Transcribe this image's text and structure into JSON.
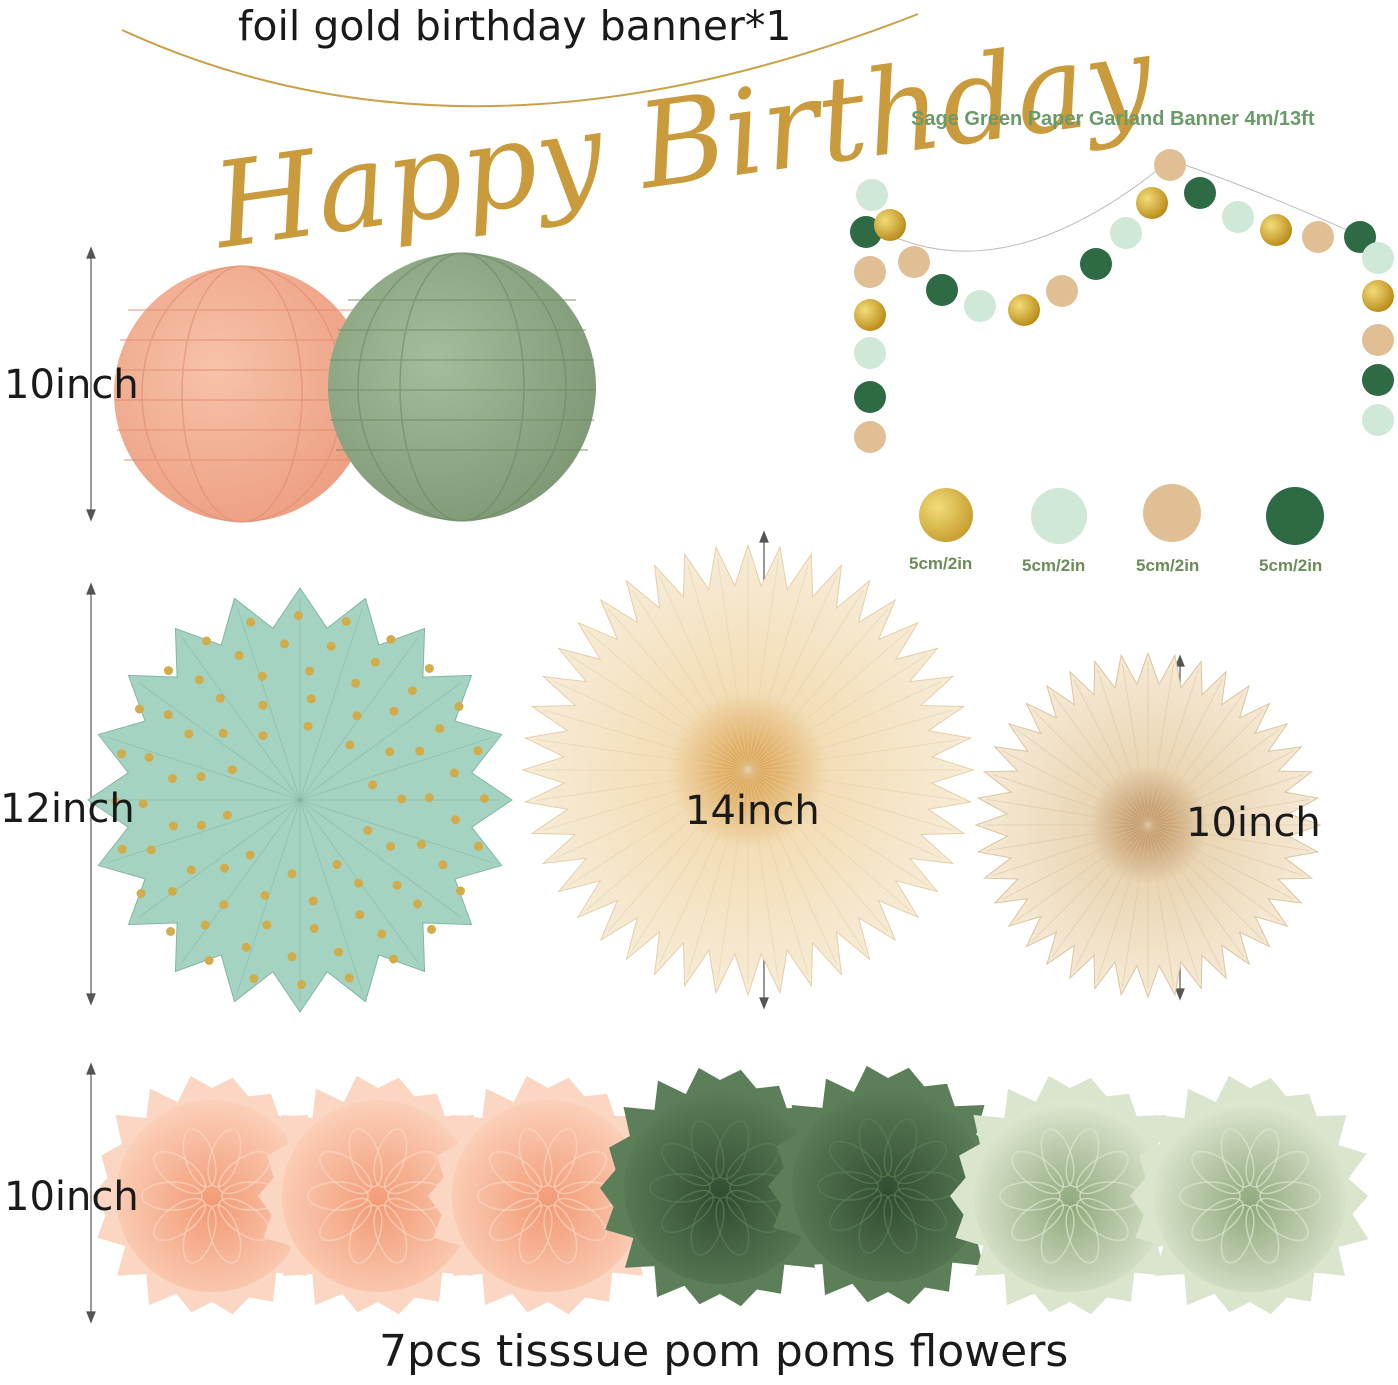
{
  "banner": {
    "caption": "foil gold birthday banner*1",
    "script_text": "Happy Birthday"
  },
  "garland": {
    "title": "Sage Green Paper Garland Banner   4m/13ft",
    "swatches": [
      {
        "name": "gold-dot",
        "label": "5cm/2in",
        "color": "#d4a92a"
      },
      {
        "name": "mint-dot",
        "label": "5cm/2in",
        "color": "#cfe8d8"
      },
      {
        "name": "tan-dot",
        "label": "5cm/2in",
        "color": "#e0bf95"
      },
      {
        "name": "dark-green-dot",
        "label": "5cm/2in",
        "color": "#2e6a43"
      }
    ]
  },
  "lanterns": {
    "size_label": "10inch",
    "colors": {
      "peach": "#f2ad90",
      "sage": "#8fa886"
    }
  },
  "fans": {
    "row_label": "12inch",
    "middle_label": "14inch",
    "right_label": "10inch",
    "colors": {
      "mint": "#a4d3c2",
      "cream": "#f5e6cc",
      "beige": "#f3e3c8",
      "gold_center": "#d7993a"
    }
  },
  "pompoms": {
    "size_label": "10inch",
    "caption": "7pcs tisssue pom poms flowers",
    "colors": {
      "peach": "#f9b99a",
      "dark_green": "#4d6e4b",
      "sage": "#c6d5b5"
    }
  }
}
